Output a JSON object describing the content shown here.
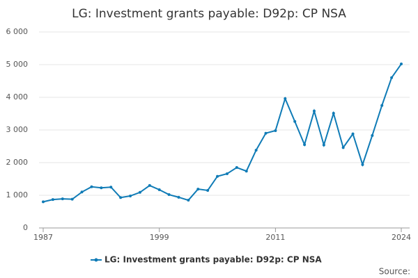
{
  "chart_data": {
    "type": "line",
    "title": "LG: Investment grants payable: D92p: CP NSA",
    "x": [
      1987,
      1988,
      1989,
      1990,
      1991,
      1992,
      1993,
      1994,
      1995,
      1996,
      1997,
      1998,
      1999,
      2000,
      2001,
      2002,
      2003,
      2004,
      2005,
      2006,
      2007,
      2008,
      2009,
      2010,
      2011,
      2012,
      2013,
      2014,
      2015,
      2016,
      2017,
      2018,
      2019,
      2020,
      2021,
      2022,
      2023,
      2024
    ],
    "series": [
      {
        "name": "LG: Investment grants payable: D92p: CP NSA",
        "color": "#0f7bb6",
        "values": [
          800,
          870,
          890,
          880,
          1100,
          1260,
          1230,
          1250,
          930,
          980,
          1090,
          1300,
          1170,
          1020,
          940,
          850,
          1190,
          1150,
          1580,
          1660,
          1850,
          1740,
          2380,
          2900,
          2980,
          3960,
          3260,
          2550,
          3580,
          2540,
          3510,
          2460,
          2880,
          1940,
          2830,
          3750,
          4600,
          5020
        ]
      }
    ],
    "xlim": [
      1987,
      2024
    ],
    "xticks": [
      1987,
      1999,
      2011,
      2024
    ],
    "ylim": [
      0,
      6000
    ],
    "yticks": [
      0,
      {
        "value": 1000,
        "label": "1 000"
      },
      {
        "value": 2000,
        "label": "2 000"
      },
      {
        "value": 3000,
        "label": "3 000"
      },
      {
        "value": 4000,
        "label": "4 000"
      },
      {
        "value": 5000,
        "label": "5 000"
      },
      {
        "value": 6000,
        "label": "6 000"
      }
    ],
    "grid": true,
    "source": "Source:"
  }
}
